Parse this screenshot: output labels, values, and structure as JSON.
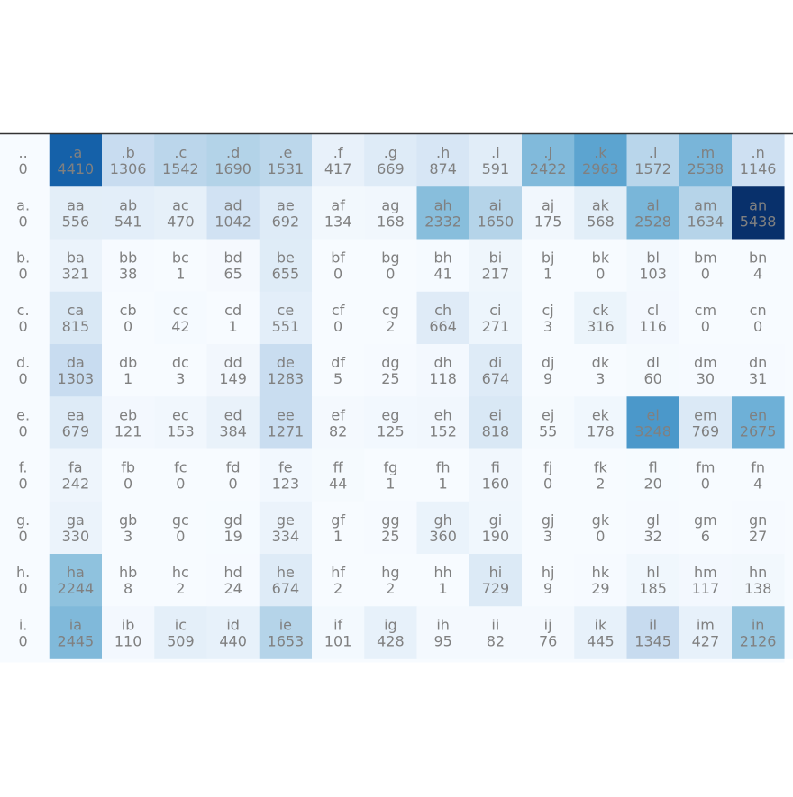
{
  "chart_data": {
    "type": "heatmap",
    "title": "",
    "xlabel": "",
    "ylabel": "",
    "colormap": "Blues",
    "text_color": "#808080",
    "max_value": 5438,
    "rows": [
      [
        "..",
        ".a",
        ".b",
        ".c",
        ".d",
        ".e",
        ".f",
        ".g",
        ".h",
        ".i",
        ".j",
        ".k",
        ".l",
        ".m",
        ".n"
      ],
      [
        "a.",
        "aa",
        "ab",
        "ac",
        "ad",
        "ae",
        "af",
        "ag",
        "ah",
        "ai",
        "aj",
        "ak",
        "al",
        "am",
        "an"
      ],
      [
        "b.",
        "ba",
        "bb",
        "bc",
        "bd",
        "be",
        "bf",
        "bg",
        "bh",
        "bi",
        "bj",
        "bk",
        "bl",
        "bm",
        "bn"
      ],
      [
        "c.",
        "ca",
        "cb",
        "cc",
        "cd",
        "ce",
        "cf",
        "cg",
        "ch",
        "ci",
        "cj",
        "ck",
        "cl",
        "cm",
        "cn"
      ],
      [
        "d.",
        "da",
        "db",
        "dc",
        "dd",
        "de",
        "df",
        "dg",
        "dh",
        "di",
        "dj",
        "dk",
        "dl",
        "dm",
        "dn"
      ],
      [
        "e.",
        "ea",
        "eb",
        "ec",
        "ed",
        "ee",
        "ef",
        "eg",
        "eh",
        "ei",
        "ej",
        "ek",
        "el",
        "em",
        "en"
      ],
      [
        "f.",
        "fa",
        "fb",
        "fc",
        "fd",
        "fe",
        "ff",
        "fg",
        "fh",
        "fi",
        "fj",
        "fk",
        "fl",
        "fm",
        "fn"
      ],
      [
        "g.",
        "ga",
        "gb",
        "gc",
        "gd",
        "ge",
        "gf",
        "gg",
        "gh",
        "gi",
        "gj",
        "gk",
        "gl",
        "gm",
        "gn"
      ],
      [
        "h.",
        "ha",
        "hb",
        "hc",
        "hd",
        "he",
        "hf",
        "hg",
        "hh",
        "hi",
        "hj",
        "hk",
        "hl",
        "hm",
        "hn"
      ],
      [
        "i.",
        "ia",
        "ib",
        "ic",
        "id",
        "ie",
        "if",
        "ig",
        "ih",
        "ii",
        "ij",
        "ik",
        "il",
        "im",
        "in"
      ]
    ],
    "values": [
      [
        0,
        4410,
        1306,
        1542,
        1690,
        1531,
        417,
        669,
        874,
        591,
        2422,
        2963,
        1572,
        2538,
        1146
      ],
      [
        0,
        556,
        541,
        470,
        1042,
        692,
        134,
        168,
        2332,
        1650,
        175,
        568,
        2528,
        1634,
        5438
      ],
      [
        0,
        321,
        38,
        1,
        65,
        655,
        0,
        0,
        41,
        217,
        1,
        0,
        103,
        0,
        4
      ],
      [
        0,
        815,
        0,
        42,
        1,
        551,
        0,
        2,
        664,
        271,
        3,
        316,
        116,
        0,
        0
      ],
      [
        0,
        1303,
        1,
        3,
        149,
        1283,
        5,
        25,
        118,
        674,
        9,
        3,
        60,
        30,
        31
      ],
      [
        0,
        679,
        121,
        153,
        384,
        1271,
        82,
        125,
        152,
        818,
        55,
        178,
        3248,
        769,
        2675
      ],
      [
        0,
        242,
        0,
        0,
        0,
        123,
        44,
        1,
        1,
        160,
        0,
        2,
        20,
        0,
        4
      ],
      [
        0,
        330,
        3,
        0,
        19,
        334,
        1,
        25,
        360,
        190,
        3,
        0,
        32,
        6,
        27
      ],
      [
        0,
        2244,
        8,
        2,
        24,
        674,
        2,
        2,
        1,
        729,
        9,
        29,
        185,
        117,
        138
      ],
      [
        0,
        2445,
        110,
        509,
        440,
        1653,
        101,
        428,
        95,
        82,
        76,
        445,
        1345,
        427,
        2126
      ]
    ],
    "partial_row_values": [
      0,
      1,
      0,
      1,
      0,
      1,
      0,
      0,
      0,
      0,
      0,
      0,
      0,
      0,
      0
    ],
    "partial_column_values": [
      0,
      0,
      0,
      0,
      0,
      0,
      0,
      0,
      0,
      0
    ]
  }
}
